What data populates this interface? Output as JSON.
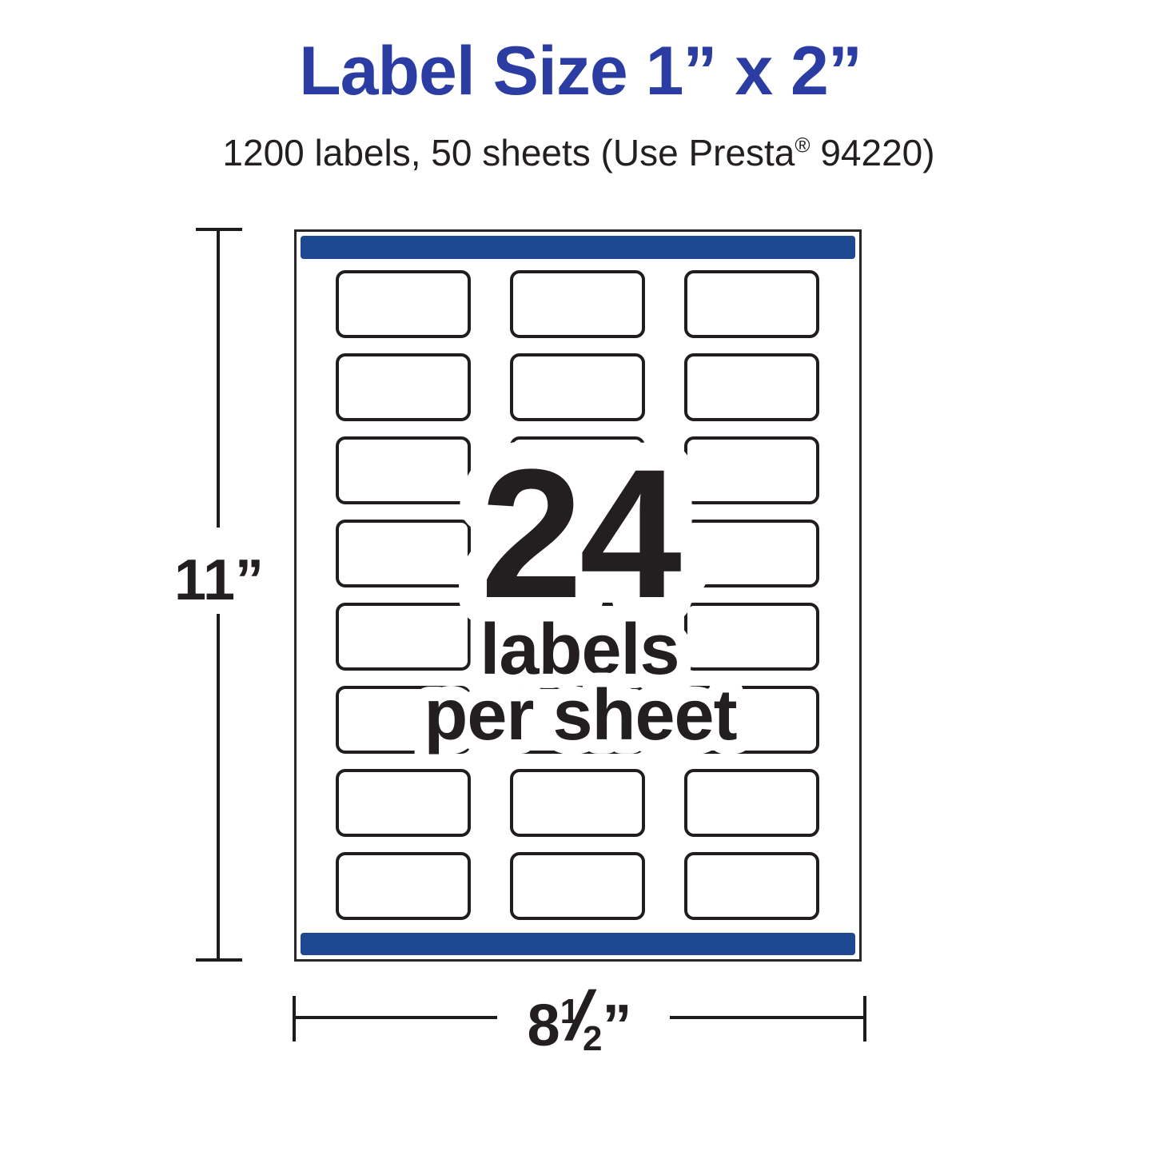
{
  "header": {
    "title": "Label Size 1” x 2”",
    "subtitle_pre": "1200 labels, 50 sheets (Use Presta",
    "subtitle_reg": "®",
    "subtitle_post": " 94220)"
  },
  "sheet": {
    "rows": 8,
    "columns": 3,
    "caption": {
      "count": "24",
      "line1": "labels",
      "line2": "per sheet"
    }
  },
  "dimensions": {
    "height_label": "11”",
    "width_whole": "8",
    "width_numerator": "1",
    "width_slash": "/",
    "width_denominator": "2",
    "width_unit": "”"
  },
  "colors": {
    "title_blue": "#2b3da2",
    "bar_blue": "#1e4891",
    "ink": "#231f20",
    "line": "#1c1c1c"
  }
}
